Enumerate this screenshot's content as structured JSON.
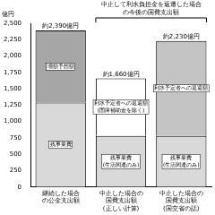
{
  "chart_data": {
    "type": "bar",
    "stacked": true,
    "y_label": "億円",
    "categories": [
      "継続した場合\nの公金支出額",
      "中止した場合の\n国費支出額\n(正しい計算)",
      "中止した場合の\n国費支出額\n(国交省の話)"
    ],
    "series": [
      {
        "name": "残事業費",
        "color": "#d9d9d9",
        "values": [
          1290,
          780,
          780
        ],
        "inner_labels": [
          "残事業費",
          "残事業費\n(生活関連のみ)",
          "残事業費\n(生活関連のみ)"
        ]
      },
      {
        "name": "利水予定者への返還額",
        "colors": [
          "#ffffff",
          "#ffffff",
          "#c4c4c4"
        ],
        "values": [
          null,
          880,
          1450
        ],
        "inner_labels": [
          null,
          "利水予定者への返還額\n(国庫補助金を除く)",
          "利水予定者への返還額"
        ]
      },
      {
        "name": "増額予想額",
        "color": "#a6a6a6",
        "values": [
          1100,
          null,
          null
        ],
        "inner_labels": [
          "増額予想額",
          null,
          null
        ]
      }
    ],
    "totals": [
      2390,
      1660,
      2230
    ],
    "total_labels": [
      "約2,390億円",
      "約1,660億円",
      "約2,230億円"
    ],
    "group_label": {
      "text": "中止して利水負担金を返還した場合\nの今後の国費支出額",
      "categories": [
        1,
        2
      ]
    },
    "ylim": [
      0,
      2500
    ],
    "yticks": [
      0,
      250,
      500,
      750,
      {
        "value": 1000,
        "label": "1,000"
      },
      {
        "value": 1250,
        "label": "1,250"
      },
      {
        "value": 1500,
        "label": "1,500"
      },
      {
        "value": 1750,
        "label": "1,750"
      },
      {
        "value": 2000,
        "label": "2,000"
      },
      {
        "value": 2250,
        "label": "2,250"
      },
      {
        "value": 2500,
        "label": "2,500"
      }
    ],
    "grid": false,
    "legend": false
  }
}
